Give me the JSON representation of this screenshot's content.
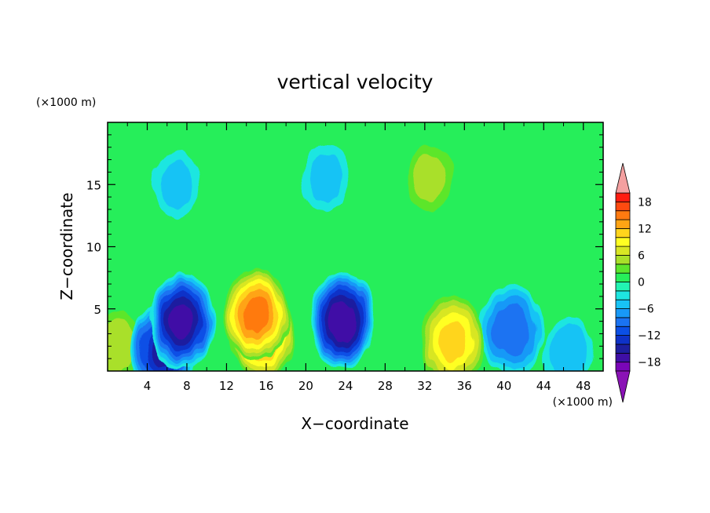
{
  "chart_data": {
    "type": "heatmap",
    "title": "vertical velocity",
    "xlabel": "X−coordinate",
    "ylabel": "Z−coordinate",
    "x_unit": "(×1000 m)",
    "y_unit": "(×1000 m)",
    "xlim": [
      0,
      50
    ],
    "ylim": [
      0,
      20
    ],
    "x_ticks": [
      "4",
      "8",
      "12",
      "16",
      "20",
      "24",
      "28",
      "32",
      "36",
      "40",
      "44",
      "48"
    ],
    "y_ticks": [
      "5",
      "10",
      "15"
    ],
    "colorbar_labels": [
      "18",
      "12",
      "6",
      "0",
      "−6",
      "−12",
      "−18"
    ],
    "colorbar_levels": [
      -20,
      -18,
      -16,
      -14,
      -12,
      -10,
      -8,
      -6,
      -4,
      -2,
      0,
      2,
      4,
      6,
      8,
      10,
      12,
      14,
      16,
      18,
      20
    ],
    "colorbar_colors": [
      "#7a06b8",
      "#3f0fa6",
      "#1d1f9f",
      "#0e32c8",
      "#0b4fe6",
      "#1a73f2",
      "#1899f7",
      "#18c3f5",
      "#1ee6e0",
      "#22f4b2",
      "#27ee5a",
      "#5ce62c",
      "#a9e02a",
      "#d8e624",
      "#ffff22",
      "#ffd51c",
      "#ffa414",
      "#ff7a10",
      "#ff4a10",
      "#ff1c10"
    ],
    "colorbar_extend": {
      "low": "#8a12b6",
      "high": "#f4a0a0"
    },
    "features": [
      {
        "x": 7.5,
        "z": 4.0,
        "w": -16
      },
      {
        "x": 5.6,
        "z": 1.8,
        "w": -14
      },
      {
        "x": 15.0,
        "z": 4.6,
        "w": 14
      },
      {
        "x": 15.5,
        "z": 3.0,
        "w": 13
      },
      {
        "x": 23.7,
        "z": 4.0,
        "w": -17
      },
      {
        "x": 34.8,
        "z": 2.4,
        "w": 10
      },
      {
        "x": 40.8,
        "z": 3.3,
        "w": -9
      },
      {
        "x": 1.0,
        "z": 2.0,
        "w": 5
      },
      {
        "x": 46.5,
        "z": 1.5,
        "w": -5
      },
      {
        "x": 32.5,
        "z": 15.5,
        "w": 4
      },
      {
        "x": 7.0,
        "z": 15.0,
        "w": -4
      },
      {
        "x": 22.0,
        "z": 15.5,
        "w": -4
      }
    ]
  }
}
